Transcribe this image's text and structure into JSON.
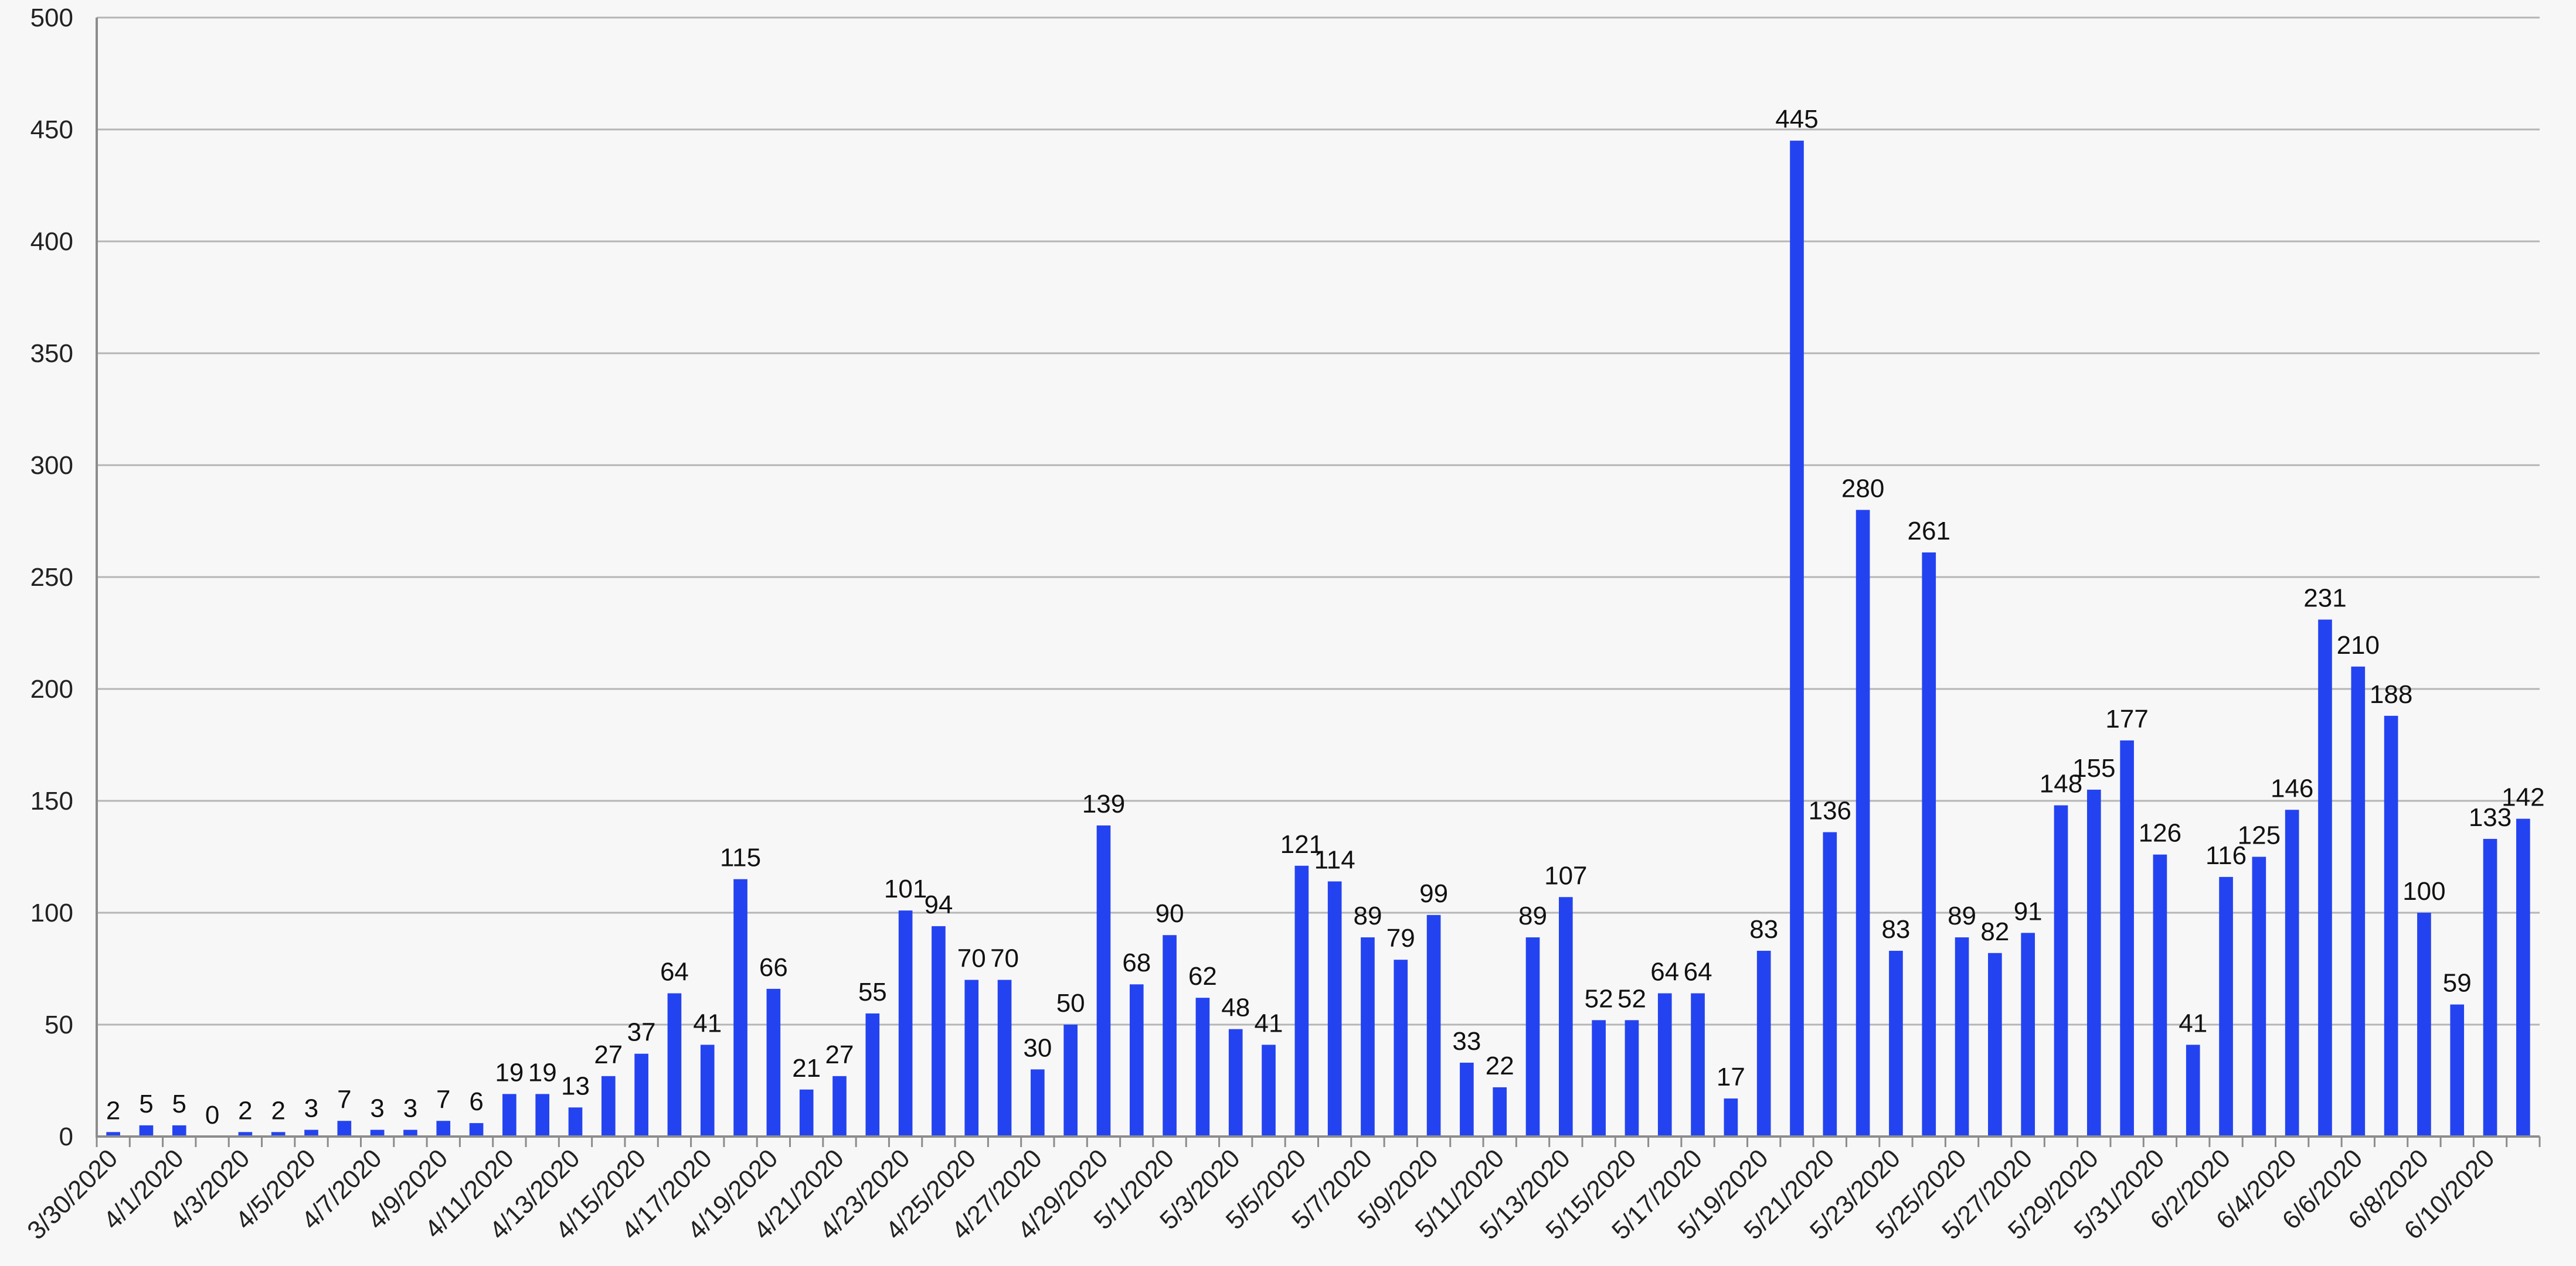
{
  "chart_data": {
    "type": "bar",
    "title": "",
    "xlabel": "",
    "ylabel": "",
    "ylim": [
      0,
      500
    ],
    "yticks": [
      0,
      50,
      100,
      150,
      200,
      250,
      300,
      350,
      400,
      450,
      500
    ],
    "grid": true,
    "legend": "none",
    "bar_color": "#2443f0",
    "categories": [
      "3/30/2020",
      "3/31/2020",
      "4/1/2020",
      "4/2/2020",
      "4/3/2020",
      "4/4/2020",
      "4/5/2020",
      "4/6/2020",
      "4/7/2020",
      "4/8/2020",
      "4/9/2020",
      "4/10/2020",
      "4/11/2020",
      "4/12/2020",
      "4/13/2020",
      "4/14/2020",
      "4/15/2020",
      "4/16/2020",
      "4/17/2020",
      "4/18/2020",
      "4/19/2020",
      "4/20/2020",
      "4/21/2020",
      "4/22/2020",
      "4/23/2020",
      "4/24/2020",
      "4/25/2020",
      "4/26/2020",
      "4/27/2020",
      "4/28/2020",
      "4/29/2020",
      "4/30/2020",
      "5/1/2020",
      "5/2/2020",
      "5/3/2020",
      "5/4/2020",
      "5/5/2020",
      "5/6/2020",
      "5/7/2020",
      "5/8/2020",
      "5/9/2020",
      "5/10/2020",
      "5/11/2020",
      "5/12/2020",
      "5/13/2020",
      "5/14/2020",
      "5/15/2020",
      "5/16/2020",
      "5/17/2020",
      "5/18/2020",
      "5/19/2020",
      "5/20/2020",
      "5/21/2020",
      "5/22/2020",
      "5/23/2020",
      "5/24/2020",
      "5/25/2020",
      "5/26/2020",
      "5/27/2020",
      "5/28/2020",
      "5/29/2020",
      "5/30/2020",
      "5/31/2020",
      "6/1/2020",
      "6/2/2020",
      "6/3/2020",
      "6/4/2020",
      "6/5/2020",
      "6/6/2020",
      "6/7/2020",
      "6/8/2020",
      "6/9/2020",
      "6/10/2020",
      "6/11/2020"
    ],
    "values": [
      2,
      5,
      5,
      0,
      2,
      2,
      3,
      7,
      3,
      3,
      7,
      6,
      19,
      19,
      13,
      27,
      37,
      64,
      41,
      115,
      66,
      21,
      27,
      55,
      101,
      94,
      70,
      70,
      30,
      50,
      139,
      68,
      90,
      62,
      48,
      41,
      121,
      114,
      89,
      79,
      99,
      33,
      22,
      89,
      107,
      52,
      52,
      64,
      64,
      17,
      83,
      445,
      136,
      280,
      83,
      261,
      89,
      82,
      91,
      148,
      155,
      177,
      126,
      41,
      116,
      125,
      146,
      231,
      210,
      188,
      100,
      59,
      133,
      142
    ],
    "tick_labels_shown": [
      "3/30/2020",
      "4/1/2020",
      "4/3/2020",
      "4/5/2020",
      "4/7/2020",
      "4/9/2020",
      "4/11/2020",
      "4/13/2020",
      "4/15/2020",
      "4/17/2020",
      "4/19/2020",
      "4/21/2020",
      "4/23/2020",
      "4/25/2020",
      "4/27/2020",
      "4/29/2020",
      "5/1/2020",
      "5/3/2020",
      "5/5/2020",
      "5/7/2020",
      "5/9/2020",
      "5/11/2020",
      "5/13/2020",
      "5/15/2020",
      "5/17/2020",
      "5/19/2020",
      "5/21/2020",
      "5/23/2020",
      "5/25/2020",
      "5/27/2020",
      "5/29/2020",
      "5/31/2020",
      "6/2/2020",
      "6/4/2020",
      "6/6/2020",
      "6/8/2020",
      "6/10/2020"
    ]
  }
}
